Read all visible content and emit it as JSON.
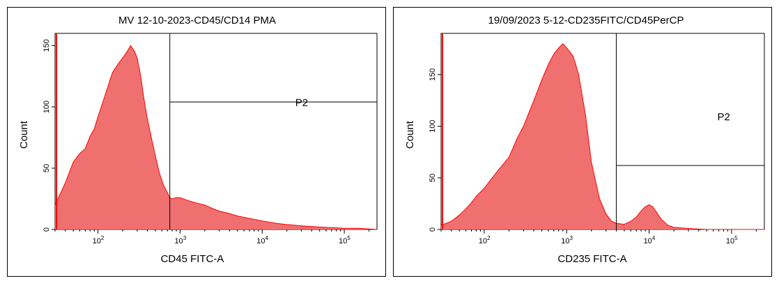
{
  "chart_data": [
    {
      "type": "area",
      "title": "MV 12-10-2023-CD45/CD14 PMA",
      "xlabel": "CD45 FITC-A",
      "ylabel": "Count",
      "xscale": "log",
      "xlim": [
        30,
        250000
      ],
      "ylim": [
        0,
        160
      ],
      "x_ticks": [
        {
          "exp": "2",
          "value": 100
        },
        {
          "exp": "3",
          "value": 1000
        },
        {
          "exp": "4",
          "value": 10000
        },
        {
          "exp": "5",
          "value": 100000
        }
      ],
      "y_ticks": [
        0,
        50,
        100,
        150
      ],
      "fill_color": "#f07070",
      "line_color": "#ff0000",
      "gate": {
        "label": "P2",
        "x_start": 750,
        "x_end": 250000,
        "y_level": 104
      },
      "series": [
        {
          "x": [
            30,
            40,
            50,
            60,
            70,
            80,
            90,
            100,
            120,
            150,
            180,
            200,
            220,
            250,
            280,
            300,
            330,
            360,
            400,
            450,
            500,
            560,
            630,
            700,
            750,
            800,
            900,
            1000,
            1200,
            1500,
            2000,
            2500,
            3000,
            4000,
            5000,
            7000,
            10000,
            15000,
            20000,
            30000,
            50000,
            100000,
            150000,
            250000
          ],
          "y": [
            20,
            38,
            55,
            62,
            66,
            76,
            82,
            92,
            108,
            128,
            136,
            140,
            144,
            150,
            145,
            140,
            126,
            108,
            90,
            74,
            60,
            46,
            36,
            30,
            26,
            25,
            26,
            26,
            24,
            22,
            20,
            17,
            15,
            13,
            11,
            9,
            7,
            5,
            4,
            3,
            2,
            1,
            1,
            0
          ]
        }
      ]
    },
    {
      "type": "area",
      "title": "19/09/2023 5-12-CD235FITC/CD45PerCP",
      "xlabel": "CD235 FITC-A",
      "ylabel": "Count",
      "xscale": "log",
      "xlim": [
        30,
        250000
      ],
      "ylim": [
        0,
        190
      ],
      "x_ticks": [
        {
          "exp": "2",
          "value": 100
        },
        {
          "exp": "3",
          "value": 1000
        },
        {
          "exp": "4",
          "value": 10000
        },
        {
          "exp": "5",
          "value": 100000
        }
      ],
      "y_ticks": [
        0,
        50,
        100,
        150
      ],
      "fill_color": "#f07070",
      "line_color": "#ff0000",
      "gate": {
        "label": "P2",
        "x_start": 4000,
        "x_end": 250000,
        "y_level": 62
      },
      "series": [
        {
          "x": [
            30,
            40,
            50,
            60,
            70,
            80,
            100,
            120,
            150,
            200,
            250,
            300,
            400,
            500,
            600,
            700,
            800,
            900,
            1000,
            1200,
            1400,
            1700,
            2000,
            2500,
            3000,
            3500,
            4000,
            5000,
            6000,
            7000,
            8000,
            9000,
            10000,
            11000,
            12000,
            14000,
            17000,
            20000,
            30000,
            50000,
            250000
          ],
          "y": [
            4,
            8,
            14,
            20,
            26,
            32,
            40,
            48,
            58,
            70,
            88,
            100,
            125,
            145,
            160,
            170,
            176,
            180,
            176,
            168,
            150,
            110,
            65,
            30,
            15,
            8,
            6,
            5,
            8,
            12,
            18,
            22,
            24,
            22,
            18,
            10,
            4,
            2,
            1,
            0,
            0
          ]
        }
      ]
    }
  ]
}
